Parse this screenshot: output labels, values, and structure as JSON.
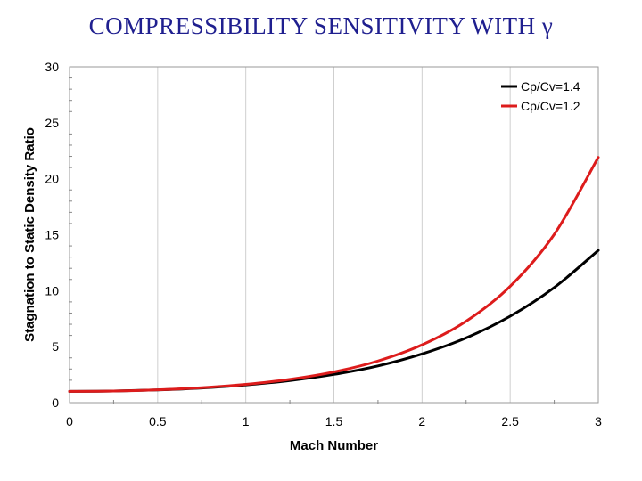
{
  "title": "COMPRESSIBILITY SENSITIVITY WITH γ",
  "chart_data": {
    "type": "line",
    "xlabel": "Mach Number",
    "ylabel": "Stagnation to Static Density Ratio",
    "xlim": [
      0,
      3
    ],
    "ylim": [
      0,
      30
    ],
    "xticks": [
      "0",
      "0.5",
      "1",
      "1.5",
      "2",
      "2.5",
      "3"
    ],
    "yticks": [
      "0",
      "5",
      "10",
      "15",
      "20",
      "25",
      "30"
    ],
    "grid": "vertical",
    "legend_position": "top-right",
    "x": [
      0,
      0.25,
      0.5,
      0.75,
      1.0,
      1.25,
      1.5,
      1.75,
      2.0,
      2.25,
      2.5,
      2.75,
      3.0
    ],
    "series": [
      {
        "name": "Cp/Cv=1.4",
        "color": "#000000",
        "values": [
          1.0,
          1.03,
          1.13,
          1.3,
          1.58,
          1.97,
          2.52,
          3.28,
          4.35,
          5.78,
          7.72,
          10.28,
          13.6
        ]
      },
      {
        "name": "Cp/Cv=1.2",
        "color": "#dd1c1c",
        "values": [
          1.0,
          1.03,
          1.14,
          1.33,
          1.63,
          2.08,
          2.74,
          3.72,
          5.16,
          7.27,
          10.39,
          15.03,
          21.91
        ]
      }
    ]
  }
}
